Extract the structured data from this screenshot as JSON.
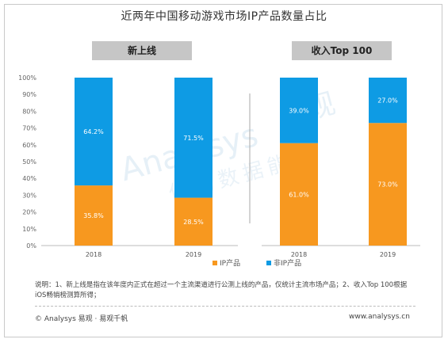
{
  "title": "近两年中国移动游戏市场IP产品数量占比",
  "colors": {
    "ip": "#f7981f",
    "non_ip": "#0e9be4",
    "header_bg": "#c6c6c6"
  },
  "legend": {
    "ip_label": "IP产品",
    "non_ip_label": "非IP产品"
  },
  "watermark": {
    "brand": "Analysys",
    "cn": "易观",
    "slogan": "你的数据能力"
  },
  "note": "说明：1、新上线是指在该年度内正式在超过一个主流渠道进行公测上线的产品，仅统计主流市场产品；2、收入Top 100根据iOS畅销榜测算所得；",
  "footer": {
    "left": "© Analysys 易观 · 易观千帆",
    "right": "www.analysys.cn"
  },
  "chart_data": [
    {
      "type": "bar",
      "stacked": true,
      "title": "新上线",
      "categories": [
        "2018",
        "2019"
      ],
      "ylim": [
        0,
        100
      ],
      "yticks": [
        "0%",
        "10%",
        "20%",
        "30%",
        "40%",
        "50%",
        "60%",
        "70%",
        "80%",
        "90%",
        "100%"
      ],
      "series": [
        {
          "name": "IP产品",
          "values": [
            35.8,
            28.5
          ],
          "labels": [
            "35.8%",
            "28.5%"
          ]
        },
        {
          "name": "非IP产品",
          "values": [
            64.2,
            71.5
          ],
          "labels": [
            "64.2%",
            "71.5%"
          ]
        }
      ]
    },
    {
      "type": "bar",
      "stacked": true,
      "title": "收入Top 100",
      "categories": [
        "2018",
        "2019"
      ],
      "ylim": [
        0,
        100
      ],
      "series": [
        {
          "name": "IP产品",
          "values": [
            61.0,
            73.0
          ],
          "labels": [
            "61.0%",
            "73.0%"
          ]
        },
        {
          "name": "非IP产品",
          "values": [
            39.0,
            27.0
          ],
          "labels": [
            "39.0%",
            "27.0%"
          ]
        }
      ]
    }
  ]
}
